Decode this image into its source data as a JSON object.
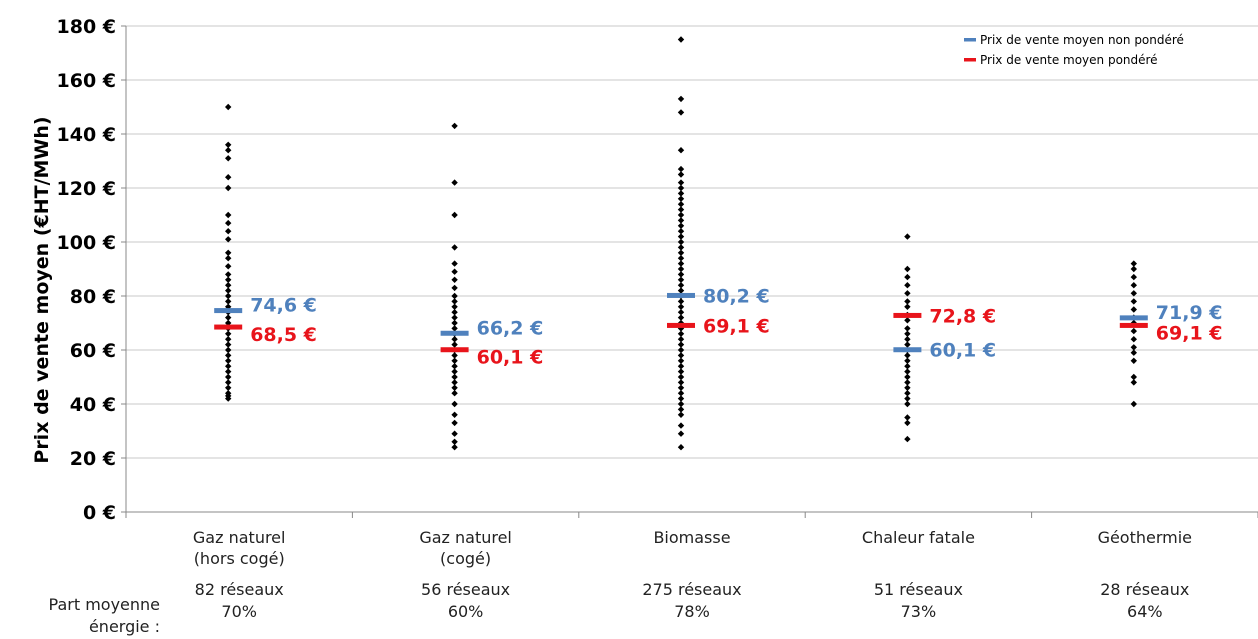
{
  "chart_data": {
    "type": "scatter",
    "ylabel": "Prix de vente moyen (€HT/MWh)",
    "ylim": [
      0,
      180
    ],
    "yticks": [
      "0 €",
      "20 €",
      "40 €",
      "60 €",
      "80 €",
      "100 €",
      "120 €",
      "140 €",
      "160 €",
      "180 €"
    ],
    "grid": true,
    "legend_position": "top-right",
    "legend": [
      {
        "name": "Prix de vente moyen non pondéré",
        "color": "#4f81bd"
      },
      {
        "name": "Prix de vente moyen pondéré",
        "color": "#e8141b"
      }
    ],
    "footer_label": "Part moyenne énergie :",
    "categories": [
      {
        "name_lines": [
          "Gaz naturel",
          "(hors cogé)"
        ],
        "networks": "82 réseaux",
        "share": "70%",
        "unweighted": 74.6,
        "unweighted_label": "74,6 €",
        "weighted": 68.5,
        "weighted_label": "68,5 €",
        "points": [
          150,
          136,
          134,
          131,
          124,
          120,
          110,
          107,
          104,
          101,
          96,
          94,
          91,
          88,
          86,
          84,
          82,
          80,
          78,
          76,
          74,
          72,
          70,
          68,
          66,
          64,
          62,
          60,
          58,
          56,
          54,
          52,
          50,
          48,
          46,
          44,
          43,
          42
        ]
      },
      {
        "name_lines": [
          "Gaz naturel",
          "(cogé)"
        ],
        "networks": "56 réseaux",
        "share": "60%",
        "unweighted": 66.2,
        "unweighted_label": "66,2 €",
        "weighted": 60.1,
        "weighted_label": "60,1 €",
        "points": [
          143,
          122,
          110,
          98,
          92,
          89,
          86,
          83,
          80,
          78,
          76,
          74,
          72,
          70,
          68,
          66,
          64,
          62,
          60,
          58,
          56,
          54,
          52,
          50,
          48,
          46,
          44,
          40,
          36,
          33,
          29,
          26,
          24
        ]
      },
      {
        "name_lines": [
          "Biomasse"
        ],
        "networks": "275 réseaux",
        "share": "78%",
        "unweighted": 80.2,
        "unweighted_label": "80,2 €",
        "weighted": 69.1,
        "weighted_label": "69,1 €",
        "points": [
          175,
          153,
          148,
          134,
          127,
          125,
          122,
          120,
          118,
          116,
          114,
          112,
          110,
          108,
          106,
          104,
          102,
          100,
          98,
          96,
          94,
          92,
          90,
          88,
          86,
          84,
          82,
          80,
          78,
          76,
          74,
          72,
          70,
          68,
          66,
          64,
          62,
          60,
          58,
          56,
          54,
          52,
          50,
          48,
          46,
          44,
          42,
          40,
          38,
          36,
          32,
          29,
          24
        ]
      },
      {
        "name_lines": [
          "Chaleur fatale"
        ],
        "networks": "51 réseaux",
        "share": "73%",
        "unweighted": 60.1,
        "unweighted_label": "60,1 €",
        "weighted": 72.8,
        "weighted_label": "72,8 €",
        "points": [
          102,
          90,
          87,
          84,
          81,
          78,
          76,
          73,
          71,
          68,
          66,
          64,
          62,
          60,
          58,
          56,
          54,
          52,
          50,
          48,
          46,
          44,
          42,
          40,
          35,
          33,
          27
        ]
      },
      {
        "name_lines": [
          "Géothermie"
        ],
        "networks": "28 réseaux",
        "share": "64%",
        "unweighted": 71.9,
        "unweighted_label": "71,9 €",
        "weighted": 69.1,
        "weighted_label": "69,1 €",
        "points": [
          92,
          90,
          87,
          84,
          81,
          78,
          75,
          72,
          70,
          67,
          64,
          61,
          59,
          56,
          50,
          48,
          40
        ]
      }
    ]
  }
}
